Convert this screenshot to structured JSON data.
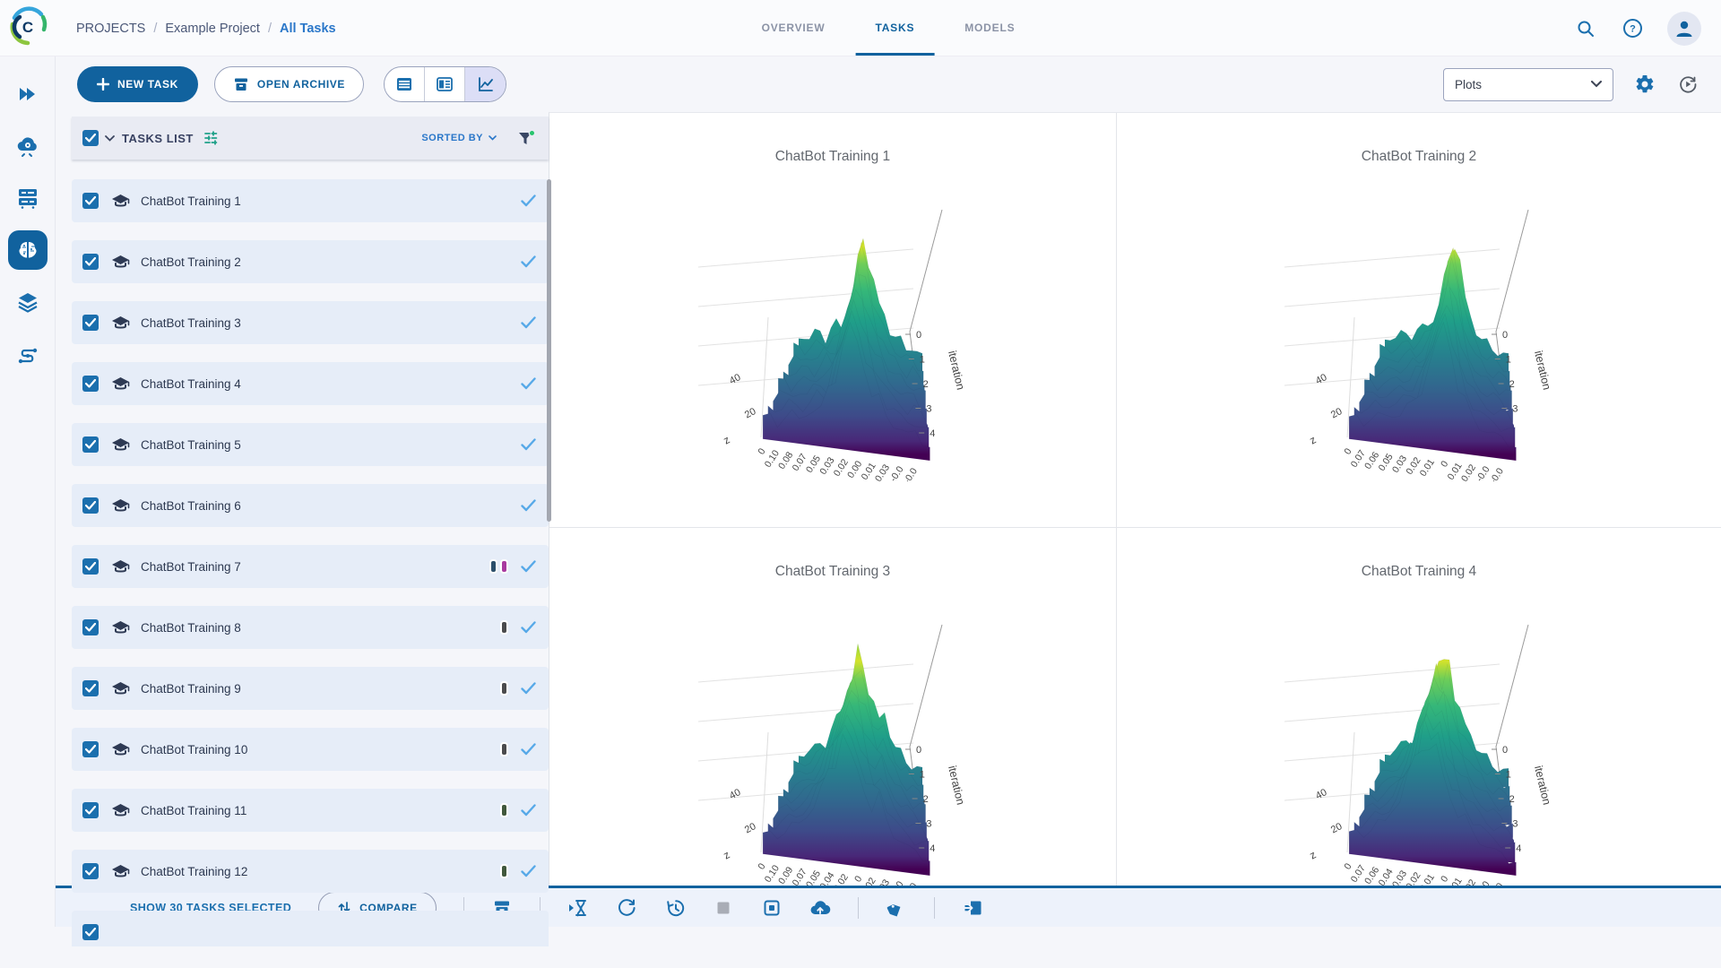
{
  "app": {
    "name": "ClearML",
    "logo_letter": "C"
  },
  "header": {
    "breadcrumb": {
      "items": [
        "PROJECTS",
        "Example Project",
        "All Tasks"
      ],
      "separator": "/"
    },
    "tabs": [
      {
        "label": "OVERVIEW",
        "active": false
      },
      {
        "label": "TASKS",
        "active": true
      },
      {
        "label": "MODELS",
        "active": false
      }
    ],
    "help_glyph": "?"
  },
  "toolbar": {
    "new_task_label": "NEW TASK",
    "open_archive_label": "OPEN ARCHIVE",
    "view_modes": [
      "table",
      "details",
      "plots"
    ],
    "active_view": "plots",
    "metric_dropdown_value": "Plots"
  },
  "tasks_panel": {
    "title": "TASKS LIST",
    "sorted_by_label": "SORTED BY",
    "select_all_checked": true,
    "tasks": [
      {
        "name": "ChatBot Training 1",
        "checked": true,
        "status": "completed",
        "tags": []
      },
      {
        "name": "ChatBot Training 2",
        "checked": true,
        "status": "completed",
        "tags": []
      },
      {
        "name": "ChatBot Training 3",
        "checked": true,
        "status": "completed",
        "tags": []
      },
      {
        "name": "ChatBot Training 4",
        "checked": true,
        "status": "completed",
        "tags": []
      },
      {
        "name": "ChatBot Training 5",
        "checked": true,
        "status": "completed",
        "tags": []
      },
      {
        "name": "ChatBot Training 6",
        "checked": true,
        "status": "completed",
        "tags": []
      },
      {
        "name": "ChatBot Training 7",
        "checked": true,
        "status": "completed",
        "tags": [
          "#2c4f6b",
          "#a93a9f"
        ]
      },
      {
        "name": "ChatBot Training 8",
        "checked": true,
        "status": "completed",
        "tags": [
          "#4b4b4d"
        ]
      },
      {
        "name": "ChatBot Training 9",
        "checked": true,
        "status": "completed",
        "tags": [
          "#4b4b4d"
        ]
      },
      {
        "name": "ChatBot Training 10",
        "checked": true,
        "status": "completed",
        "tags": [
          "#4b4b4d"
        ]
      },
      {
        "name": "ChatBot Training 11",
        "checked": true,
        "status": "completed",
        "tags": [
          "#41583c"
        ]
      },
      {
        "name": "ChatBot Training 12",
        "checked": true,
        "status": "completed",
        "tags": [
          "#41583c"
        ]
      }
    ],
    "partial_row_visible": true
  },
  "footer": {
    "show_selected_label": "SHOW 30 TASKS SELECTED",
    "selected_count": 30,
    "compare_label": "COMPARE"
  },
  "colors": {
    "primary_blue": "#11629e",
    "link_blue": "#2a77c9",
    "icon_blue": "#1b6fae",
    "row_bg": "#e6edf8",
    "status_check_blue": "#57a9e8",
    "tag_navy": "#2c4f6b",
    "tag_magenta": "#a93a9f",
    "tag_gray": "#4b4b4d",
    "tag_green": "#41583c",
    "filter_active_dot": "#27c46d"
  },
  "chart_data": [
    {
      "type": "surface",
      "title": "ChatBot Training 1",
      "colorscale": "viridis",
      "x_ticks": [
        "0",
        "0.10",
        "0.08",
        "0.07",
        "0.05",
        "0.03",
        "0.02",
        "0.00",
        "0.01",
        "0.03",
        "-0.0",
        "-0.0"
      ],
      "z_label": "z",
      "z_ticks": [
        "40",
        "20"
      ],
      "y_label": "iteration",
      "y_ticks": [
        "0",
        "1",
        "2",
        "3",
        "4"
      ],
      "profile": [
        0.16,
        0.18,
        0.15,
        0.2,
        0.22,
        0.19,
        0.25,
        0.3,
        0.28,
        0.45,
        0.6,
        0.8,
        1.0,
        0.85,
        0.65,
        0.5,
        0.42,
        0.3,
        0.26,
        0.22,
        0.18,
        0.2,
        0.15,
        0.12
      ]
    },
    {
      "type": "surface",
      "title": "ChatBot Training 2",
      "colorscale": "viridis",
      "x_ticks": [
        "0",
        "0.07",
        "0.06",
        "0.05",
        "0.03",
        "0.02",
        "0.01",
        "0",
        "0.01",
        "0.02",
        "-0.0",
        "-0.0"
      ],
      "z_label": "z",
      "z_ticks": [
        "40",
        "20"
      ],
      "y_label": "iteration",
      "y_ticks": [
        "0",
        "1",
        "2",
        "3"
      ],
      "profile": [
        0.15,
        0.17,
        0.16,
        0.19,
        0.2,
        0.22,
        0.24,
        0.26,
        0.3,
        0.35,
        0.5,
        0.65,
        0.85,
        1.0,
        0.8,
        0.55,
        0.4,
        0.3,
        0.24,
        0.2,
        0.18,
        0.16,
        0.14,
        0.12
      ]
    },
    {
      "type": "surface",
      "title": "ChatBot Training 3",
      "colorscale": "viridis",
      "x_ticks": [
        "0",
        "0.10",
        "0.09",
        "0.07",
        "0.05",
        "0.04",
        "0.02",
        "0",
        "0.02",
        "0.03",
        "-0.0",
        "-0.0"
      ],
      "z_label": "z",
      "z_ticks": [
        "40",
        "20"
      ],
      "y_label": "iteration",
      "y_ticks": [
        "0",
        "1",
        "2",
        "3",
        "4"
      ],
      "profile": [
        0.14,
        0.16,
        0.18,
        0.2,
        0.24,
        0.28,
        0.35,
        0.45,
        0.55,
        0.7,
        0.85,
        1.0,
        0.9,
        0.75,
        0.6,
        0.5,
        0.55,
        0.4,
        0.3,
        0.24,
        0.2,
        0.17,
        0.15,
        0.13
      ]
    },
    {
      "type": "surface",
      "title": "ChatBot Training 4",
      "colorscale": "viridis",
      "x_ticks": [
        "0",
        "0.07",
        "0.06",
        "0.04",
        "0.03",
        "0.02",
        "0.01",
        "0",
        "0.01",
        "0.02",
        "-0.0",
        "-0.0"
      ],
      "z_label": "z",
      "z_ticks": [
        "40",
        "20"
      ],
      "y_label": "iteration",
      "y_ticks": [
        "0",
        "1",
        "2",
        "3",
        "4"
      ],
      "profile": [
        0.15,
        0.17,
        0.19,
        0.22,
        0.26,
        0.3,
        0.4,
        0.5,
        0.65,
        0.8,
        1.0,
        0.88,
        0.95,
        0.7,
        0.55,
        0.45,
        0.38,
        0.3,
        0.25,
        0.2,
        0.17,
        0.15,
        0.13,
        0.12
      ]
    }
  ]
}
